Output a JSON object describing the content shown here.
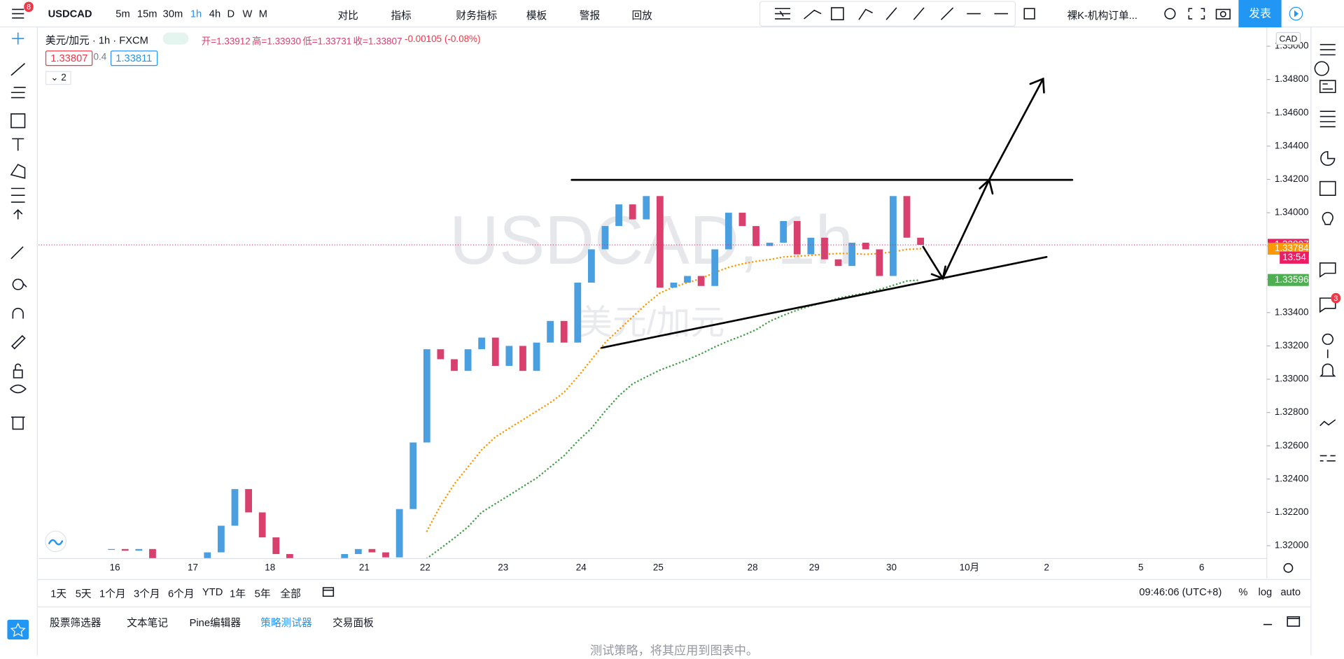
{
  "top_toolbar": {
    "symbol": "USDCAD",
    "badge": "8",
    "intervals": [
      "5m",
      "15m",
      "30m",
      "1h",
      "4h",
      "D",
      "W",
      "M"
    ],
    "active_interval": 3,
    "buttons": [
      "对比",
      "指标",
      "财务指标",
      "模板",
      "警报",
      "回放"
    ],
    "template": "裸K-机构订单...",
    "publish": "发表"
  },
  "legend": {
    "title": "美元/加元 · 1h · FXCM",
    "ohlc": [
      "开=1.33912",
      "高=1.33930",
      "低=1.33731",
      "收=1.33807",
      "-0.00105 (-0.08%)"
    ],
    "bid": "1.33807",
    "spread": "0.4",
    "ask": "1.33811",
    "collapse": "2"
  },
  "watermark": {
    "symbol": "USDCAD, 1h",
    "name": "美元/加元"
  },
  "chart_data": {
    "type": "candlestick",
    "currency": "CAD",
    "up_color": "#4a9fe0",
    "down_color": "#d9406e",
    "closes": [
      1.3198,
      1.3197,
      1.3198,
      1.319,
      1.3188,
      1.3189,
      1.3192,
      1.3196,
      1.3212,
      1.3234,
      1.322,
      1.3205,
      1.3195,
      1.3188,
      1.3186,
      1.3188,
      1.319,
      1.3195,
      1.3198,
      1.3196,
      1.3193,
      1.3222,
      1.3262,
      1.3318,
      1.3312,
      1.3305,
      1.3318,
      1.3325,
      1.3308,
      1.332,
      1.3305,
      1.3322,
      1.3335,
      1.3322,
      1.3358,
      1.3378,
      1.3392,
      1.3405,
      1.3396,
      1.341,
      1.3355,
      1.3358,
      1.3362,
      1.3356,
      1.3378,
      1.34,
      1.3392,
      1.338,
      1.3382,
      1.3395,
      1.3375,
      1.3385,
      1.3372,
      1.3368,
      1.3382,
      1.3378,
      1.3362,
      1.341,
      1.3385,
      1.33807
    ],
    "moving_averages": [
      {
        "color": "#ff9800",
        "values": [
          null,
          null,
          null,
          null,
          null,
          null,
          null,
          null,
          null,
          null,
          null,
          null,
          null,
          null,
          null,
          null,
          null,
          null,
          null,
          null,
          null,
          null,
          null,
          1.32087,
          1.32242,
          1.3237,
          1.32473,
          1.32576,
          1.32653,
          1.32705,
          1.32756,
          1.32808,
          1.32859,
          1.32921,
          1.33014,
          1.33117,
          1.3322,
          1.33297,
          1.33374,
          1.33451,
          1.33518,
          1.33554,
          1.3358,
          1.33605,
          1.33641,
          1.33672,
          1.33693,
          1.33708,
          1.33719,
          1.33734,
          1.33739,
          1.33744,
          1.3375,
          1.33755,
          1.33755,
          1.3375,
          1.33755,
          1.33765,
          1.3378,
          1.33784
        ]
      },
      {
        "color": "#43a047",
        "values": [
          null,
          null,
          null,
          null,
          null,
          null,
          null,
          null,
          null,
          null,
          null,
          null,
          null,
          null,
          null,
          null,
          null,
          null,
          null,
          null,
          null,
          null,
          null,
          1.31923,
          1.31984,
          1.32046,
          1.32113,
          1.32201,
          1.32252,
          1.32303,
          1.32355,
          1.32406,
          1.32473,
          1.3254,
          1.32628,
          1.32705,
          1.32808,
          1.329,
          1.32972,
          1.33014,
          1.33055,
          1.33086,
          1.33117,
          1.33153,
          1.33194,
          1.3323,
          1.33261,
          1.33297,
          1.33348,
          1.33384,
          1.33415,
          1.33441,
          1.33461,
          1.33487,
          1.33503,
          1.33518,
          1.33539,
          1.33564,
          1.3359,
          1.33596
        ]
      }
    ],
    "date_labels": [
      "16",
      "17",
      "18",
      "21",
      "22",
      "23",
      "24",
      "25",
      "28",
      "29",
      "30",
      "10月",
      "2",
      "5",
      "6"
    ],
    "ylim": [
      1.31923,
      1.35113
    ],
    "yticks": [
      {
        "value": 1.32,
        "label": "1.32000"
      },
      {
        "value": 1.322,
        "label": "1.32200"
      },
      {
        "value": 1.324,
        "label": "1.32400"
      },
      {
        "value": 1.326,
        "label": "1.32600"
      },
      {
        "value": 1.328,
        "label": "1.32800"
      },
      {
        "value": 1.33,
        "label": "1.33000"
      },
      {
        "value": 1.332,
        "label": "1.33200"
      },
      {
        "value": 1.334,
        "label": "1.33400"
      },
      {
        "value": 1.336,
        "label": "1.33600"
      },
      {
        "value": 1.338,
        "label": "1.33800"
      },
      {
        "value": 1.34,
        "label": "1.34000"
      },
      {
        "value": 1.342,
        "label": "1.34200"
      },
      {
        "value": 1.344,
        "label": "1.34400"
      },
      {
        "value": 1.346,
        "label": "1.34600"
      },
      {
        "value": 1.348,
        "label": "1.34800"
      },
      {
        "value": 1.35,
        "label": "1.35000"
      }
    ],
    "price_badges": [
      {
        "value": 1.33807,
        "label": "1.33807",
        "color": "#e91e63"
      },
      {
        "value": 1.33784,
        "label": "1.33784",
        "color": "#ff9800"
      },
      {
        "value": 1.33596,
        "label": "1.33596",
        "color": "#4caf50"
      }
    ],
    "time_badge": "13:54"
  },
  "bottom_toolbar": {
    "ranges": [
      "1天",
      "5天",
      "1个月",
      "3个月",
      "6个月",
      "YTD",
      "1年",
      "5年",
      "全部"
    ],
    "time": "09:46:06 (UTC+8)",
    "options": [
      "%",
      "log",
      "auto"
    ]
  },
  "bottom_panel": {
    "tabs": [
      "股票筛选器",
      "文本笔记",
      "Pine编辑器",
      "策略测试器",
      "交易面板"
    ],
    "active": 3,
    "message": "测试策略，将其应用到图表中。"
  },
  "right_sidebar": {
    "badge": "3"
  }
}
